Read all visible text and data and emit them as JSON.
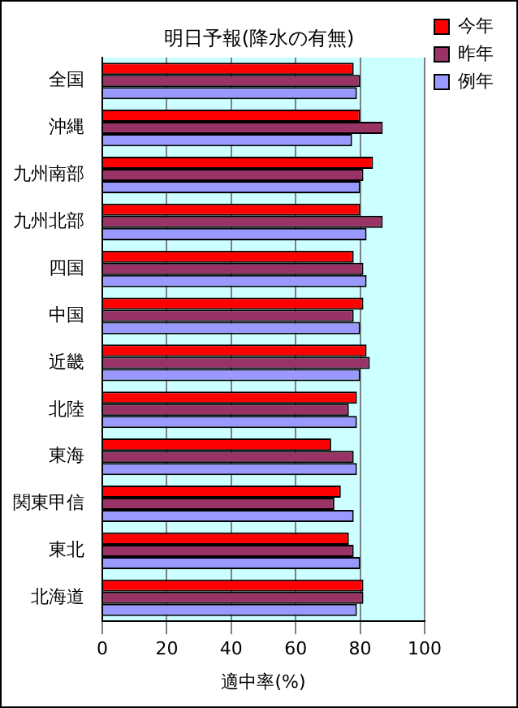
{
  "chart_data": {
    "type": "bar",
    "orientation": "horizontal",
    "title": "明日予報(降水の有無)",
    "xlabel": "適中率(%)",
    "categories": [
      "全国",
      "沖縄",
      "九州南部",
      "九州北部",
      "四国",
      "中国",
      "近畿",
      "北陸",
      "東海",
      "関東甲信",
      "東北",
      "北海道"
    ],
    "series": [
      {
        "name": "今年",
        "color": "#ff0000",
        "values": [
          78,
          80,
          84,
          80,
          78,
          81,
          82,
          79,
          71,
          74,
          76.5,
          81
        ]
      },
      {
        "name": "昨年",
        "color": "#993366",
        "values": [
          80,
          87,
          81,
          87,
          81,
          78,
          83,
          76.5,
          78,
          72,
          78,
          81
        ]
      },
      {
        "name": "例年",
        "color": "#9999ff",
        "values": [
          79,
          77.5,
          80,
          82,
          82,
          80,
          80,
          79,
          79,
          78,
          80,
          79
        ]
      }
    ],
    "xlim": [
      0,
      100
    ],
    "xticks": [
      0,
      20,
      40,
      60,
      80,
      100
    ],
    "grid": "x",
    "legend": "top right"
  }
}
